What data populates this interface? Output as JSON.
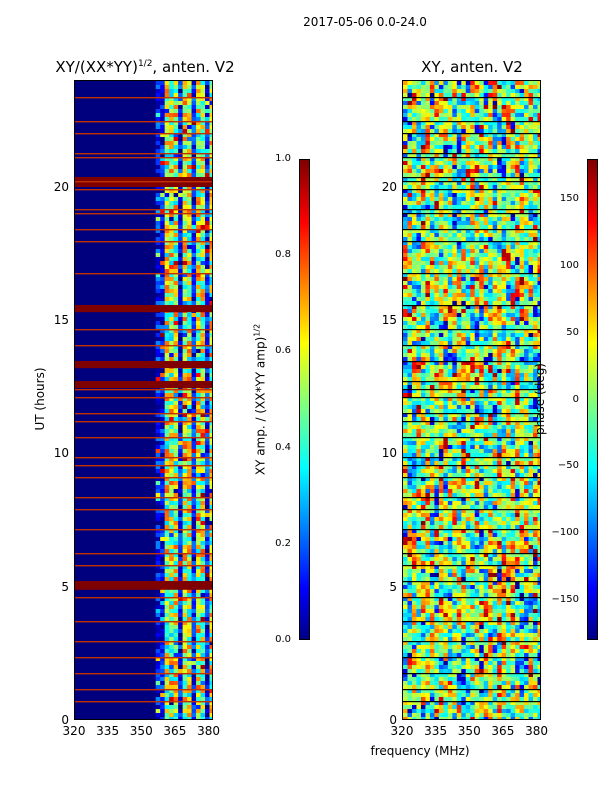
{
  "figure": {
    "title": "2017-05-06 0.0-24.0",
    "xlabel": "frequency (MHz)"
  },
  "colors": {
    "jet_dark_blue": "#00007f",
    "jet_blue": "#0000ff",
    "jet_cyan": "#00ffff",
    "jet_yellow": "#ffff00",
    "jet_red": "#ff0000",
    "jet_dark_red": "#7f0000"
  },
  "chart_data": [
    {
      "type": "heatmap",
      "title": "XY/(XX*YY)",
      "title_exp": "1/2",
      "title_suffix": ", anten. V2",
      "xlabel": "",
      "ylabel": "UT (hours)",
      "xlim": [
        320,
        382
      ],
      "ylim": [
        0,
        24
      ],
      "xticks": [
        "320",
        "335",
        "350",
        "365",
        "380"
      ],
      "yticks": [
        "0",
        "5",
        "10",
        "15",
        "20"
      ],
      "colorbar": {
        "label": "XY amp. / (XX*YY amp)",
        "label_exp": "1/2",
        "range": [
          0.0,
          1.0
        ],
        "ticks": [
          "0.0",
          "0.2",
          "0.4",
          "0.6",
          "0.8",
          "1.0"
        ]
      }
    },
    {
      "type": "heatmap",
      "title": "XY, anten. V2",
      "xlabel": "frequency (MHz)",
      "ylabel": "",
      "xlim": [
        320,
        382
      ],
      "ylim": [
        0,
        24
      ],
      "xticks": [
        "320",
        "335",
        "350",
        "365",
        "380"
      ],
      "yticks": [
        "0",
        "5",
        "10",
        "15",
        "20"
      ],
      "colorbar": {
        "label": "phase (deg)",
        "range": [
          -180,
          180
        ],
        "ticks": [
          "−150",
          "−100",
          "−50",
          "0",
          "50",
          "100",
          "150"
        ]
      }
    }
  ]
}
